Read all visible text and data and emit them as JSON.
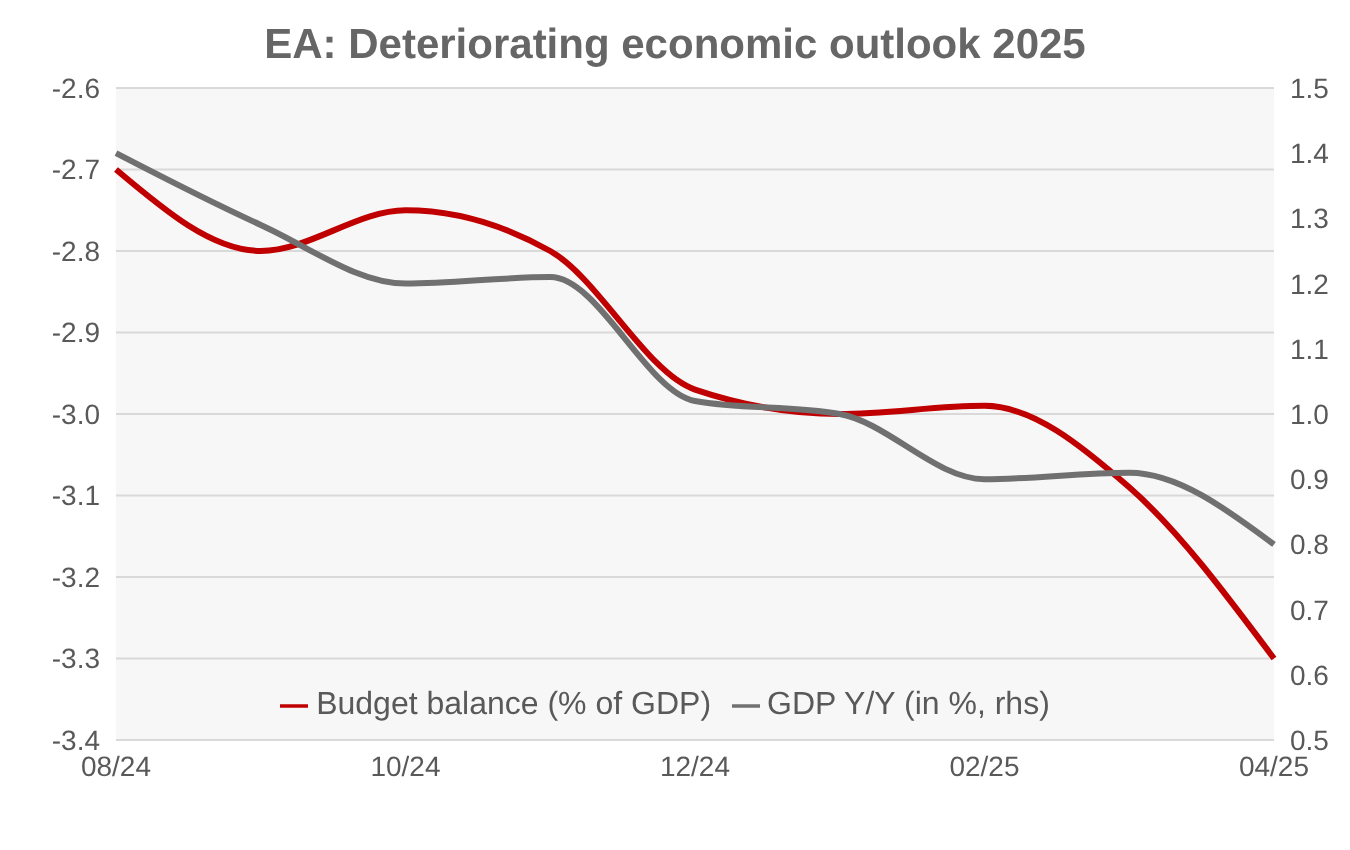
{
  "chart_data": {
    "type": "line",
    "title": "EA: Deteriorating economic outlook 2025",
    "categories": [
      "08/24",
      null,
      "10/24",
      null,
      "12/24",
      null,
      "02/25",
      null,
      "04/25"
    ],
    "series": [
      {
        "name": "Budget balance (% of GDP)",
        "color": "#c00000",
        "values": [
          -2.7,
          -2.8,
          -2.75,
          -2.8,
          -2.97,
          -3.0,
          -2.99,
          -3.09,
          -3.3
        ]
      },
      {
        "name": "GDP Y/Y (in %, rhs)",
        "color": "#707070",
        "axis": "y2",
        "values": [
          1.4,
          1.29,
          1.2,
          1.21,
          1.02,
          1.0,
          0.9,
          0.91,
          0.8
        ]
      }
    ],
    "ylim": [
      -3.4,
      -2.6
    ],
    "yticks": [
      -3.4,
      -3.3,
      -3.2,
      -3.1,
      {
        "value": -3.0,
        "label": "-3.0"
      },
      -2.9,
      -2.8,
      -2.7,
      -2.6
    ],
    "y2lim": [
      0.5,
      1.5
    ],
    "y2ticks": [
      0.5,
      0.6,
      0.7,
      0.8,
      0.9,
      {
        "value": 1.0,
        "label": "1.0"
      },
      1.1,
      1.2,
      1.3,
      1.4,
      1.5
    ],
    "grid": "y",
    "legend": "bottom",
    "marker": "none",
    "line_style": "solid"
  }
}
